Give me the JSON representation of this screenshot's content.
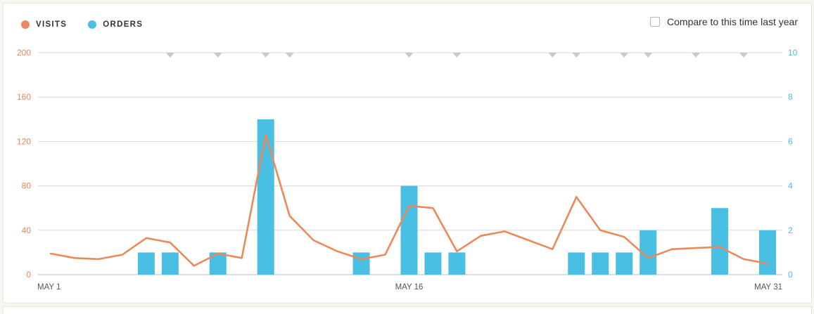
{
  "legend": {
    "visits_label": "VISITS",
    "orders_label": "ORDERS"
  },
  "compare": {
    "label": "Compare to this time last year",
    "checked": false
  },
  "colors": {
    "visits": "#ea8a5a",
    "orders": "#48bfe3",
    "grid": "#d9d9d9",
    "marker": "#c9c9c9"
  },
  "chart_data": {
    "type": "bar",
    "x": [
      "MAY 1",
      "MAY 2",
      "MAY 3",
      "MAY 4",
      "MAY 5",
      "MAY 6",
      "MAY 7",
      "MAY 8",
      "MAY 9",
      "MAY 10",
      "MAY 11",
      "MAY 12",
      "MAY 13",
      "MAY 14",
      "MAY 15",
      "MAY 16",
      "MAY 17",
      "MAY 18",
      "MAY 19",
      "MAY 20",
      "MAY 21",
      "MAY 22",
      "MAY 23",
      "MAY 24",
      "MAY 25",
      "MAY 26",
      "MAY 27",
      "MAY 28",
      "MAY 29",
      "MAY 30",
      "MAY 31"
    ],
    "x_tick_labels": [
      "MAY 1",
      "MAY 16",
      "MAY 31"
    ],
    "x_tick_positions": [
      "MAY 1",
      "MAY 16",
      "MAY 31"
    ],
    "series": [
      {
        "name": "VISITS",
        "type": "line",
        "axis": "left",
        "values": [
          19,
          15,
          14,
          18,
          33,
          29,
          8,
          19,
          15,
          126,
          53,
          31,
          21,
          14,
          18,
          62,
          60,
          21,
          35,
          39,
          31,
          23,
          70,
          40,
          34,
          15,
          23,
          24,
          25,
          14,
          10
        ]
      },
      {
        "name": "ORDERS",
        "type": "bar",
        "axis": "right",
        "values": [
          0,
          0,
          0,
          0,
          1,
          1,
          0,
          1,
          0,
          7,
          0,
          0,
          0,
          1,
          0,
          4,
          1,
          1,
          0,
          0,
          0,
          0,
          1,
          1,
          1,
          2,
          0,
          0,
          3,
          0,
          2
        ]
      }
    ],
    "y_left": {
      "ticks": [
        0,
        40,
        80,
        120,
        160,
        200
      ],
      "ylim": [
        0,
        200
      ]
    },
    "y_right": {
      "ticks": [
        0,
        2,
        4,
        6,
        8,
        10
      ],
      "ylim": [
        0,
        10
      ]
    },
    "markers_at": [
      "MAY 6",
      "MAY 8",
      "MAY 10",
      "MAY 11",
      "MAY 16",
      "MAY 18",
      "MAY 22",
      "MAY 23",
      "MAY 25",
      "MAY 26",
      "MAY 28",
      "MAY 30"
    ],
    "grid": true,
    "legend_position": "top-left"
  }
}
